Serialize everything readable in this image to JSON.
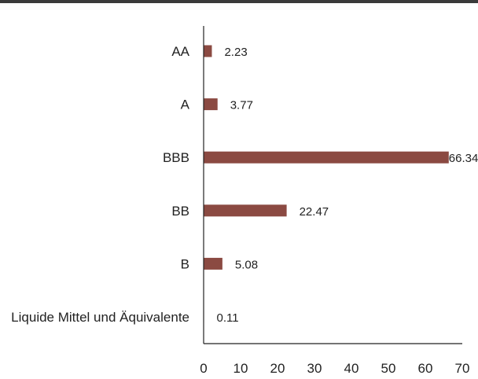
{
  "chart_data": {
    "type": "bar",
    "orientation": "horizontal",
    "categories": [
      "AA",
      "A",
      "BBB",
      "BB",
      "B",
      "Liquide Mittel und Äquivalente"
    ],
    "values": [
      2.23,
      3.77,
      66.34,
      22.47,
      5.08,
      0.11
    ],
    "value_labels": [
      "2.23",
      "3.77",
      "66.34",
      "22.47",
      "5.08",
      "0.11"
    ],
    "xlim": [
      0,
      70
    ],
    "x_ticks": [
      0,
      10,
      20,
      30,
      40,
      50,
      60,
      70
    ],
    "grid": false,
    "legend": "none",
    "title": "",
    "xlabel": "",
    "ylabel": ""
  },
  "colors": {
    "bar": "#8B4A42",
    "top_rule": "#3a3a3a",
    "axis": "#222222",
    "text": "#222222"
  }
}
